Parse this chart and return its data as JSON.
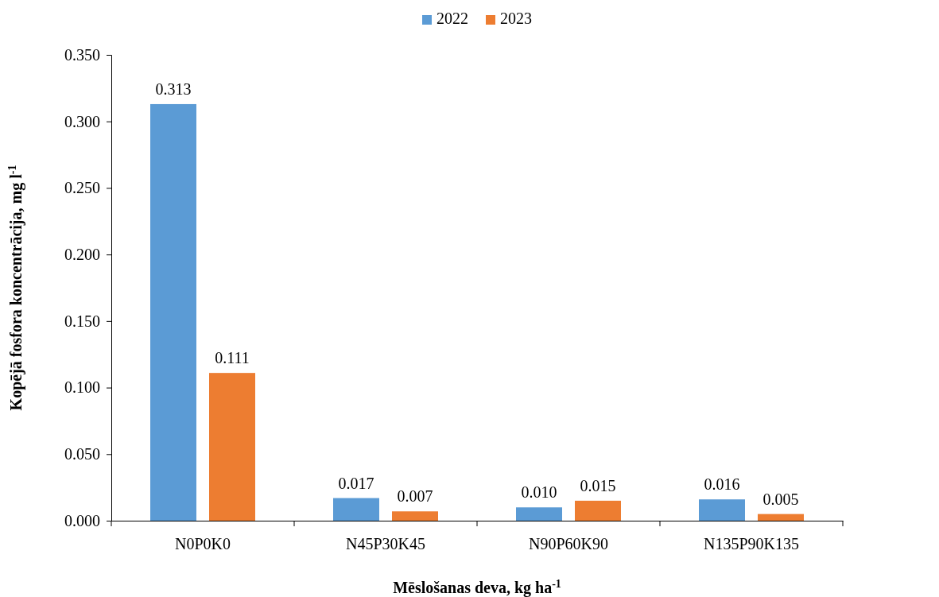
{
  "chart_data": {
    "type": "bar",
    "xlabel": "Mēslošanas deva, kg ha$^{-1}$",
    "ylabel": "Kopējā fosfora koncentrācija, mg l$^{-1}$",
    "categories": [
      "N0P0K0",
      "N45P30K45",
      "N90P60K90",
      "N135P90K135"
    ],
    "series": [
      {
        "name": "2022",
        "color": "#5b9bd5",
        "values": [
          0.313,
          0.017,
          0.01,
          0.016
        ],
        "value_labels": [
          "0.313",
          "0.017",
          "0.010",
          "0.016"
        ]
      },
      {
        "name": "2023",
        "color": "#ed7d31",
        "values": [
          0.111,
          0.007,
          0.015,
          0.005
        ],
        "value_labels": [
          "0.111",
          "0.007",
          "0.015",
          "0.005"
        ]
      }
    ],
    "ylim": [
      0,
      0.35
    ],
    "yticks": [
      {
        "value": 0,
        "label": "0.000"
      },
      {
        "value": 0.05,
        "label": "0.050"
      },
      {
        "value": 0.1,
        "label": "0.100"
      },
      {
        "value": 0.15,
        "label": "0.150"
      },
      {
        "value": 0.2,
        "label": "0.200"
      },
      {
        "value": 0.25,
        "label": "0.250"
      },
      {
        "value": 0.3,
        "label": "0.300"
      },
      {
        "value": 0.35,
        "label": "0.350"
      }
    ],
    "legend": "top",
    "grid": false
  }
}
